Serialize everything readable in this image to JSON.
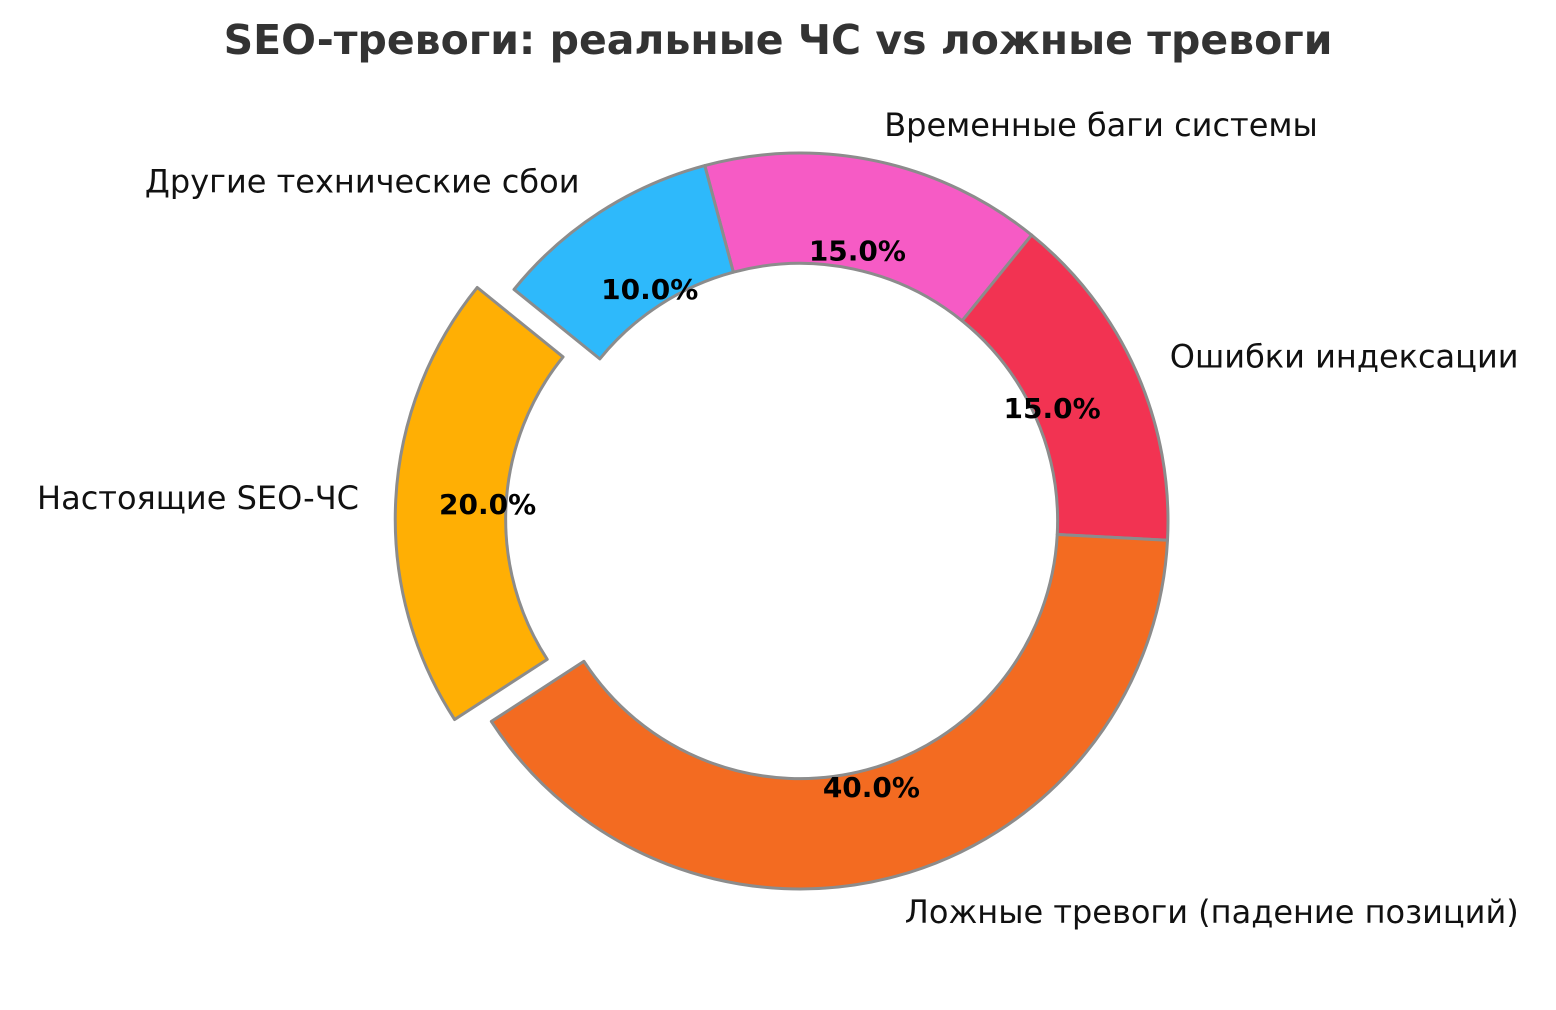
{
  "page": {
    "background_color": "#ffffff"
  },
  "chart_data": {
    "type": "pie",
    "subtype": "donut",
    "title": "SEO-тревоги: реальные ЧС vs ложные тревоги",
    "title_color": "#333333",
    "legend": "none",
    "categories": [
      "Временные баги системы",
      "Ошибки индексации",
      "Ложные тревоги (падение позиций)",
      "Настоящие SEO-ЧС",
      "Другие технические сбои"
    ],
    "values": [
      15.0,
      15.0,
      40.0,
      20.0,
      10.0
    ],
    "segments": [
      {
        "label": "Временные баги системы",
        "value": 15.0,
        "pct_label": "15.0%",
        "color": "#F65BC5",
        "explode": 0
      },
      {
        "label": "Ошибки индексации",
        "value": 15.0,
        "pct_label": "15.0%",
        "color": "#F23352",
        "explode": 0
      },
      {
        "label": "Ложные тревоги (падение позиций)",
        "value": 40.0,
        "pct_label": "40.0%",
        "color": "#F36B21",
        "explode": 0
      },
      {
        "label": "Настоящие SEO-ЧС",
        "value": 20.0,
        "pct_label": "20.0%",
        "color": "#FFAF04",
        "explode": 0.1
      },
      {
        "label": "Другие технические сбои",
        "value": 10.0,
        "pct_label": "10.0%",
        "color": "#2EB9FB",
        "explode": 0
      }
    ],
    "stroke_color": "#8C8C8C",
    "stroke_width": 3,
    "start_angle_compass_deg": -15,
    "direction": "clockwise",
    "inner_radius_ratio": 0.7,
    "pct_distance": 0.75,
    "label_distance": 1.1
  }
}
